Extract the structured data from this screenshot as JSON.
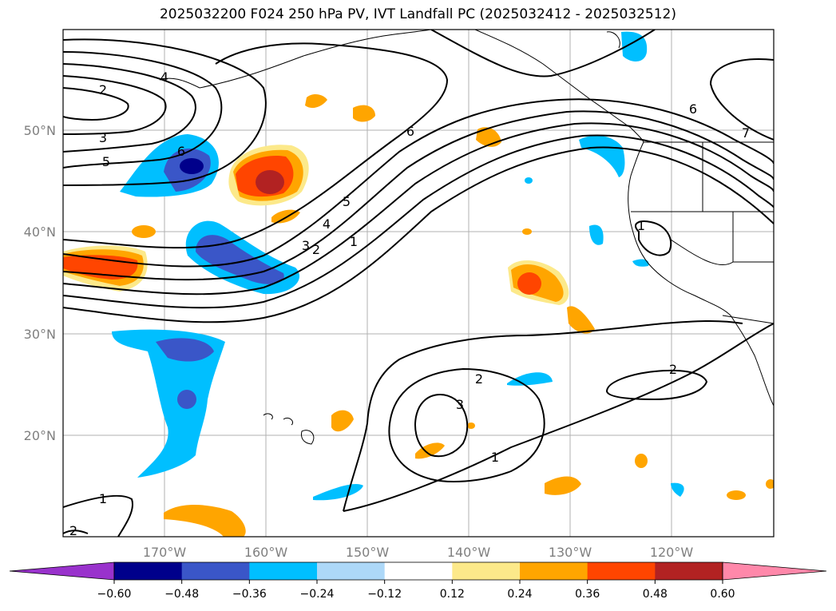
{
  "title": "2025032200 F024 250 hPa PV, IVT Landfall PC (2025032412 - 2025032512)",
  "lon_labels": [
    "170°W",
    "160°W",
    "150°W",
    "140°W",
    "130°W",
    "120°W"
  ],
  "lat_labels": [
    "50°N",
    "40°N",
    "30°N",
    "20°N"
  ],
  "colorbar": {
    "colors": [
      "#9932cc",
      "#00008b",
      "#3a56c8",
      "#00bfff",
      "#add8f8",
      "#ffffff",
      "#fce98a",
      "#ffa500",
      "#ff4500",
      "#b22222",
      "#ff88aa"
    ],
    "tick_labels": [
      "−0.60",
      "−0.48",
      "−0.36",
      "−0.24",
      "−0.12",
      "0.12",
      "0.24",
      "0.36",
      "0.48",
      "0.60"
    ]
  },
  "contour_labels": [
    "2",
    "4",
    "3",
    "5",
    "6",
    "6",
    "7",
    "5",
    "4",
    "3",
    "2",
    "1",
    "1",
    "1",
    "2",
    "2",
    "3",
    "1",
    "2",
    "6"
  ]
}
